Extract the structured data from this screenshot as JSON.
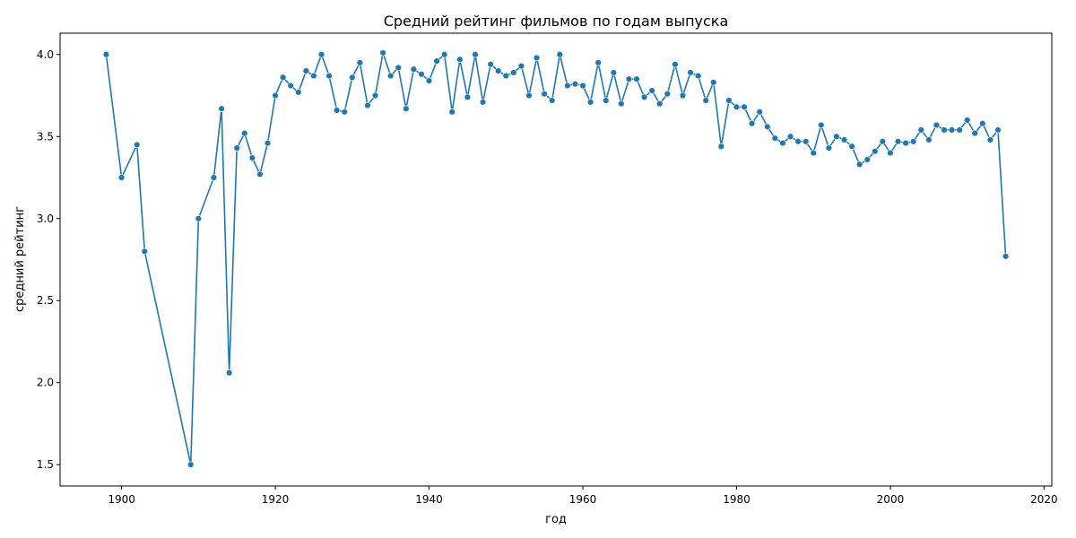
{
  "chart_data": {
    "type": "line",
    "title": "Средний рейтинг фильмов по годам выпуска",
    "xlabel": "год",
    "ylabel": "средний рейтинг",
    "xlim": [
      1892,
      2021
    ],
    "ylim": [
      1.37,
      4.13
    ],
    "x_ticks": [
      1900,
      1920,
      1940,
      1960,
      1980,
      2000,
      2020
    ],
    "y_ticks": [
      1.5,
      2.0,
      2.5,
      3.0,
      3.5,
      4.0
    ],
    "x_tick_labels": [
      "1900",
      "1920",
      "1940",
      "1960",
      "1980",
      "2000",
      "2020"
    ],
    "y_tick_labels": [
      "1.5",
      "2.0",
      "2.5",
      "3.0",
      "3.5",
      "4.0"
    ],
    "grid": false,
    "line_color": "#1f77b4",
    "marker": "circle",
    "series": [
      {
        "x": [
          1898,
          1900,
          1902,
          1903,
          1909,
          1910,
          1912,
          1913,
          1914,
          1915,
          1916,
          1917,
          1918,
          1919,
          1920,
          1921,
          1922,
          1923,
          1924,
          1925,
          1926,
          1927,
          1928,
          1929,
          1930,
          1931,
          1932,
          1933,
          1934,
          1935,
          1936,
          1937,
          1938,
          1939,
          1940,
          1941,
          1942,
          1943,
          1944,
          1945,
          1946,
          1947,
          1948,
          1949,
          1950,
          1951,
          1952,
          1953,
          1954,
          1955,
          1956,
          1957,
          1958,
          1959,
          1960,
          1961,
          1962,
          1963,
          1964,
          1965,
          1966,
          1967,
          1968,
          1969,
          1970,
          1971,
          1972,
          1973,
          1974,
          1975,
          1976,
          1977,
          1978,
          1979,
          1980,
          1981,
          1982,
          1983,
          1984,
          1985,
          1986,
          1987,
          1988,
          1989,
          1990,
          1991,
          1992,
          1993,
          1994,
          1995,
          1996,
          1997,
          1998,
          1999,
          2000,
          2001,
          2002,
          2003,
          2004,
          2005,
          2006,
          2007,
          2008,
          2009,
          2010,
          2011,
          2012,
          2013,
          2014,
          2015
        ],
        "y": [
          4.0,
          3.25,
          3.45,
          2.8,
          1.5,
          3.0,
          3.25,
          3.67,
          2.06,
          3.43,
          3.52,
          3.37,
          3.27,
          3.46,
          3.75,
          3.86,
          3.81,
          3.77,
          3.9,
          3.87,
          4.0,
          3.87,
          3.66,
          3.65,
          3.86,
          3.95,
          3.69,
          3.75,
          4.01,
          3.87,
          3.92,
          3.67,
          3.91,
          3.88,
          3.84,
          3.96,
          4.0,
          3.65,
          3.97,
          3.74,
          4.0,
          3.71,
          3.94,
          3.9,
          3.87,
          3.89,
          3.93,
          3.75,
          3.98,
          3.76,
          3.72,
          4.0,
          3.81,
          3.82,
          3.81,
          3.71,
          3.95,
          3.72,
          3.89,
          3.7,
          3.85,
          3.85,
          3.74,
          3.78,
          3.7,
          3.76,
          3.94,
          3.75,
          3.89,
          3.87,
          3.72,
          3.83,
          3.44,
          3.72,
          3.68,
          3.68,
          3.58,
          3.65,
          3.56,
          3.49,
          3.46,
          3.5,
          3.47,
          3.47,
          3.4,
          3.57,
          3.43,
          3.5,
          3.48,
          3.44,
          3.33,
          3.36,
          3.41,
          3.47,
          3.4,
          3.47,
          3.46,
          3.47,
          3.54,
          3.48,
          3.57,
          3.54,
          3.54,
          3.54,
          3.6,
          3.52,
          3.58,
          3.48,
          3.54,
          2.77
        ]
      }
    ]
  }
}
